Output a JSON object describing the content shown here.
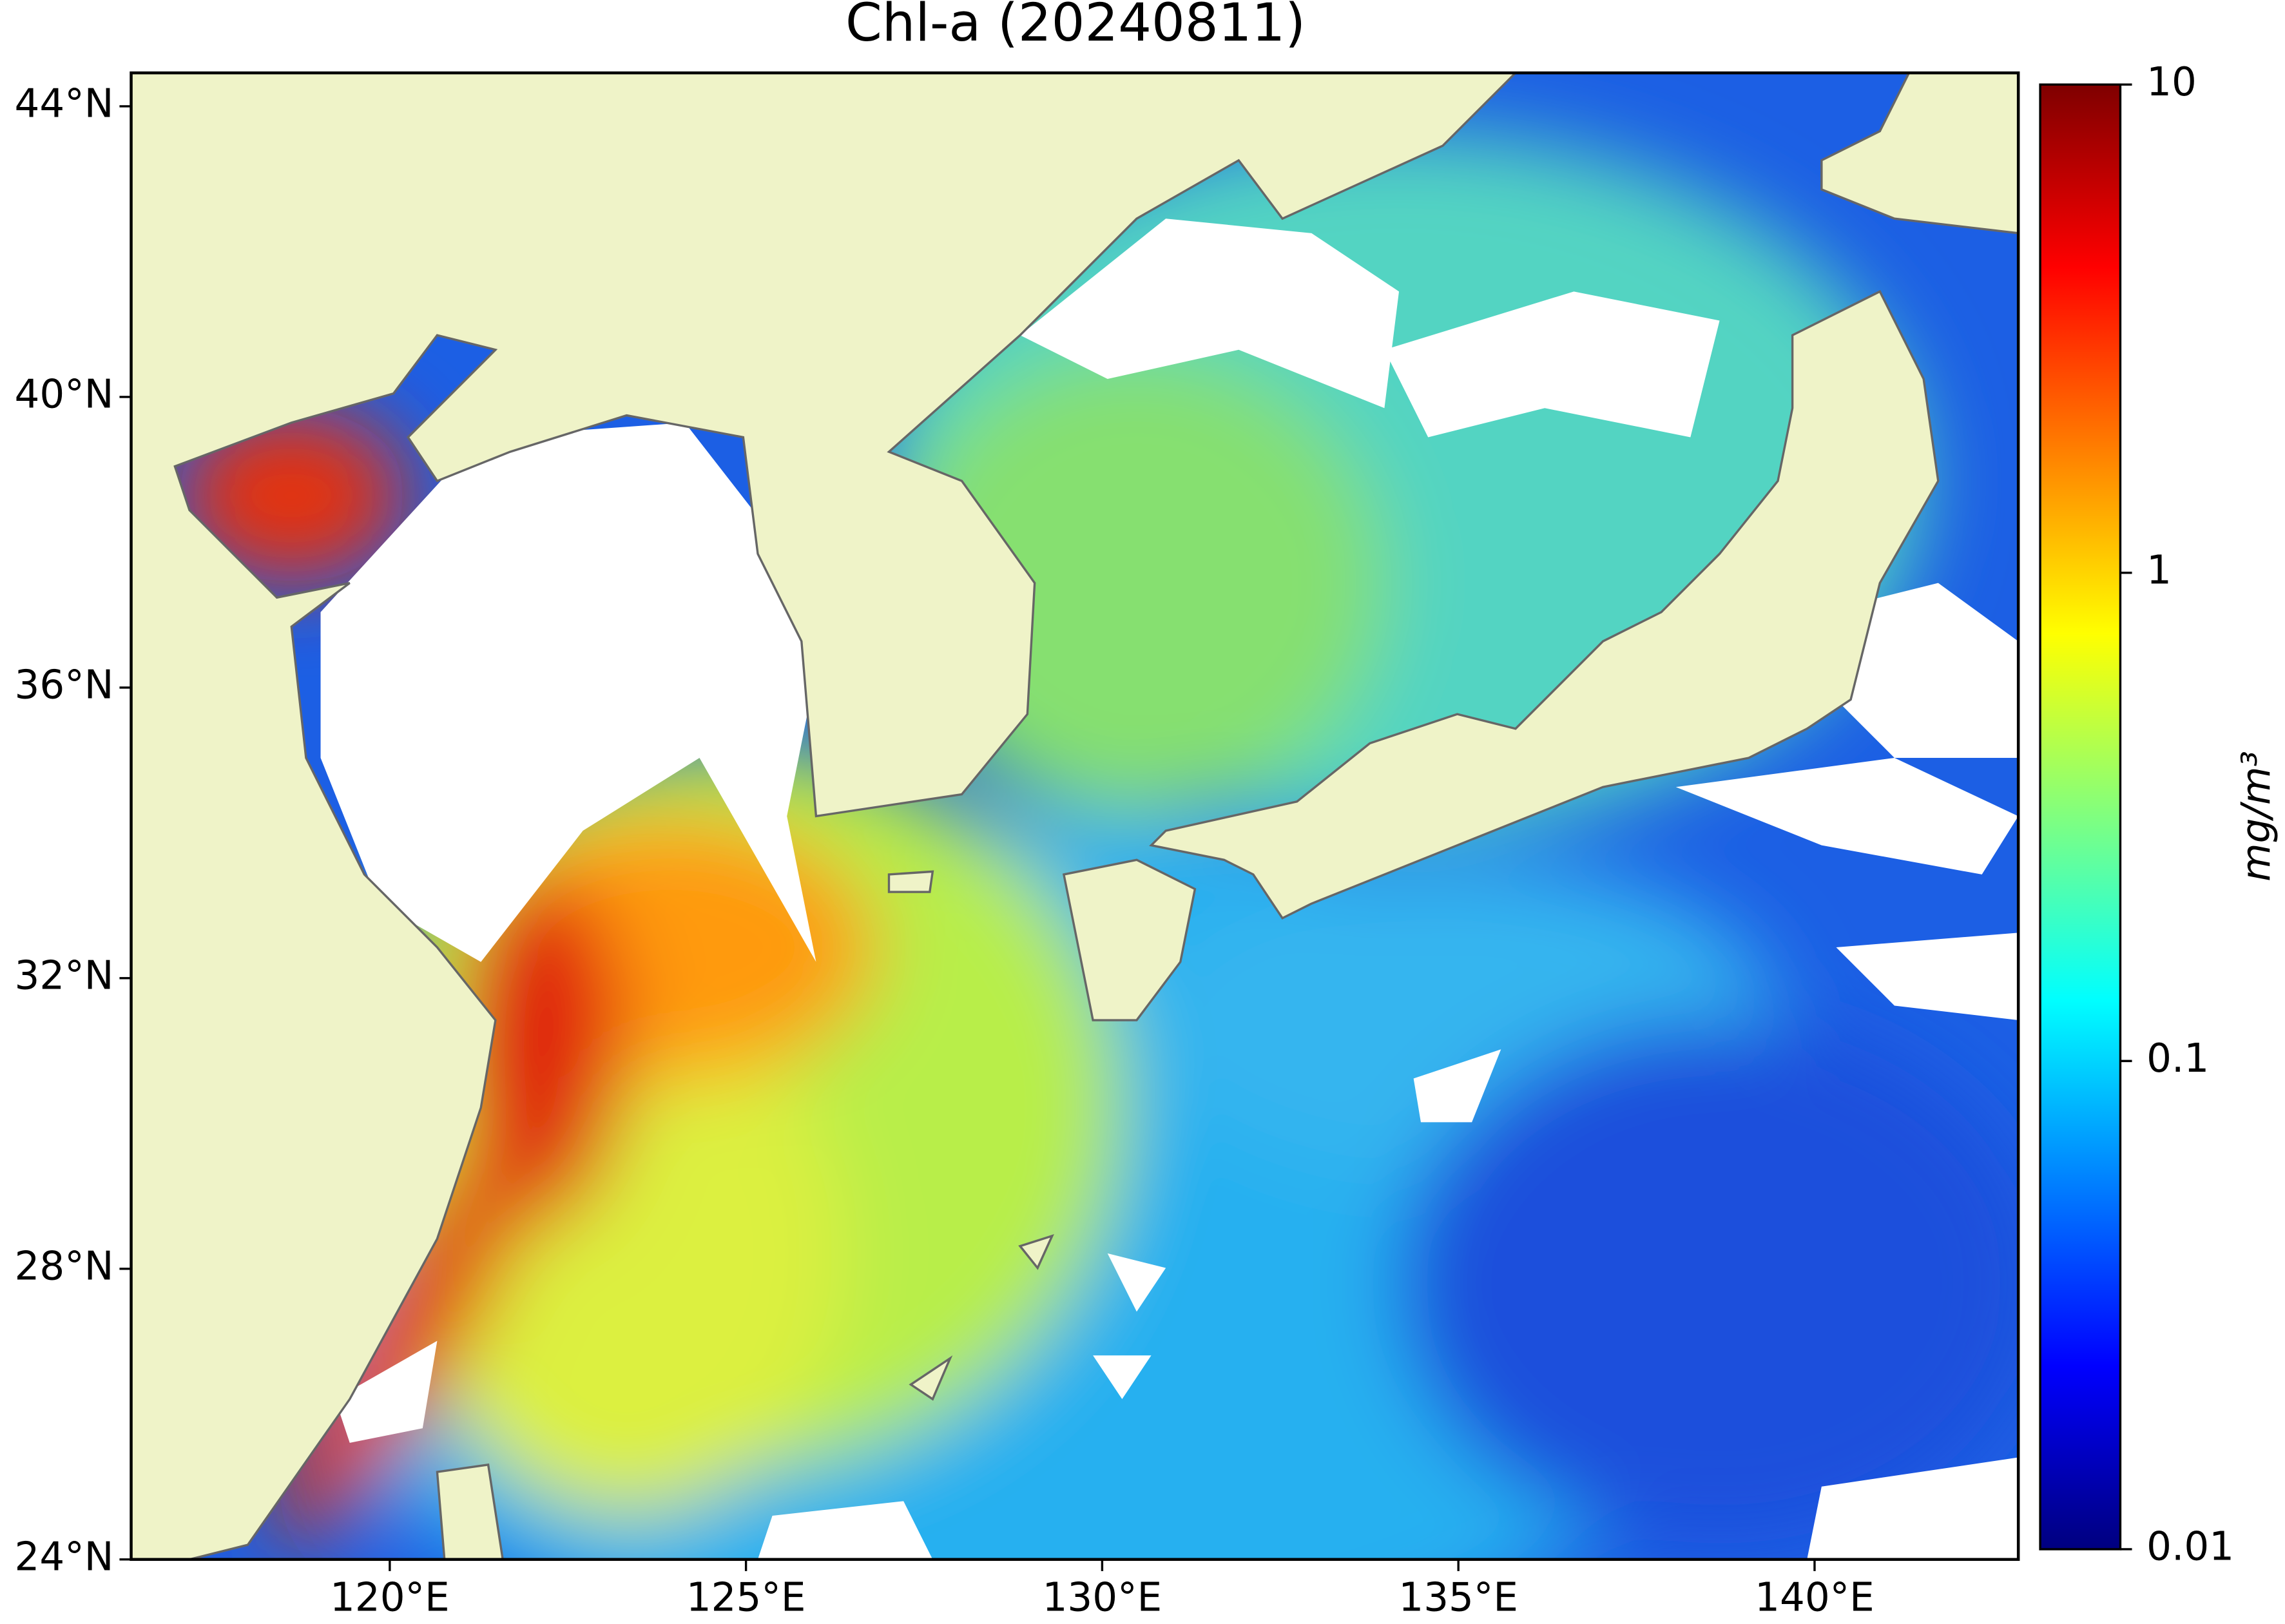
{
  "chart_data": {
    "type": "map",
    "title": "Chl-a (20240811)",
    "xlim": [
      116.37,
      142.86
    ],
    "ylim": [
      24,
      44.46
    ],
    "xticks": [
      {
        "value": 120,
        "label": "120°E"
      },
      {
        "value": 125,
        "label": "125°E"
      },
      {
        "value": 130,
        "label": "130°E"
      },
      {
        "value": 135,
        "label": "135°E"
      },
      {
        "value": 140,
        "label": "140°E"
      }
    ],
    "yticks": [
      {
        "value": 24,
        "label": "24°N"
      },
      {
        "value": 28,
        "label": "28°N"
      },
      {
        "value": 32,
        "label": "32°N"
      },
      {
        "value": 36,
        "label": "36°N"
      },
      {
        "value": 40,
        "label": "40°N"
      },
      {
        "value": 44,
        "label": "44°N"
      }
    ],
    "colorbar": {
      "label": "mg/m³",
      "scale": "log",
      "colormap": "jet",
      "lim": [
        0.01,
        10
      ],
      "ticks": [
        0.01,
        0.1,
        1,
        10
      ]
    }
  }
}
